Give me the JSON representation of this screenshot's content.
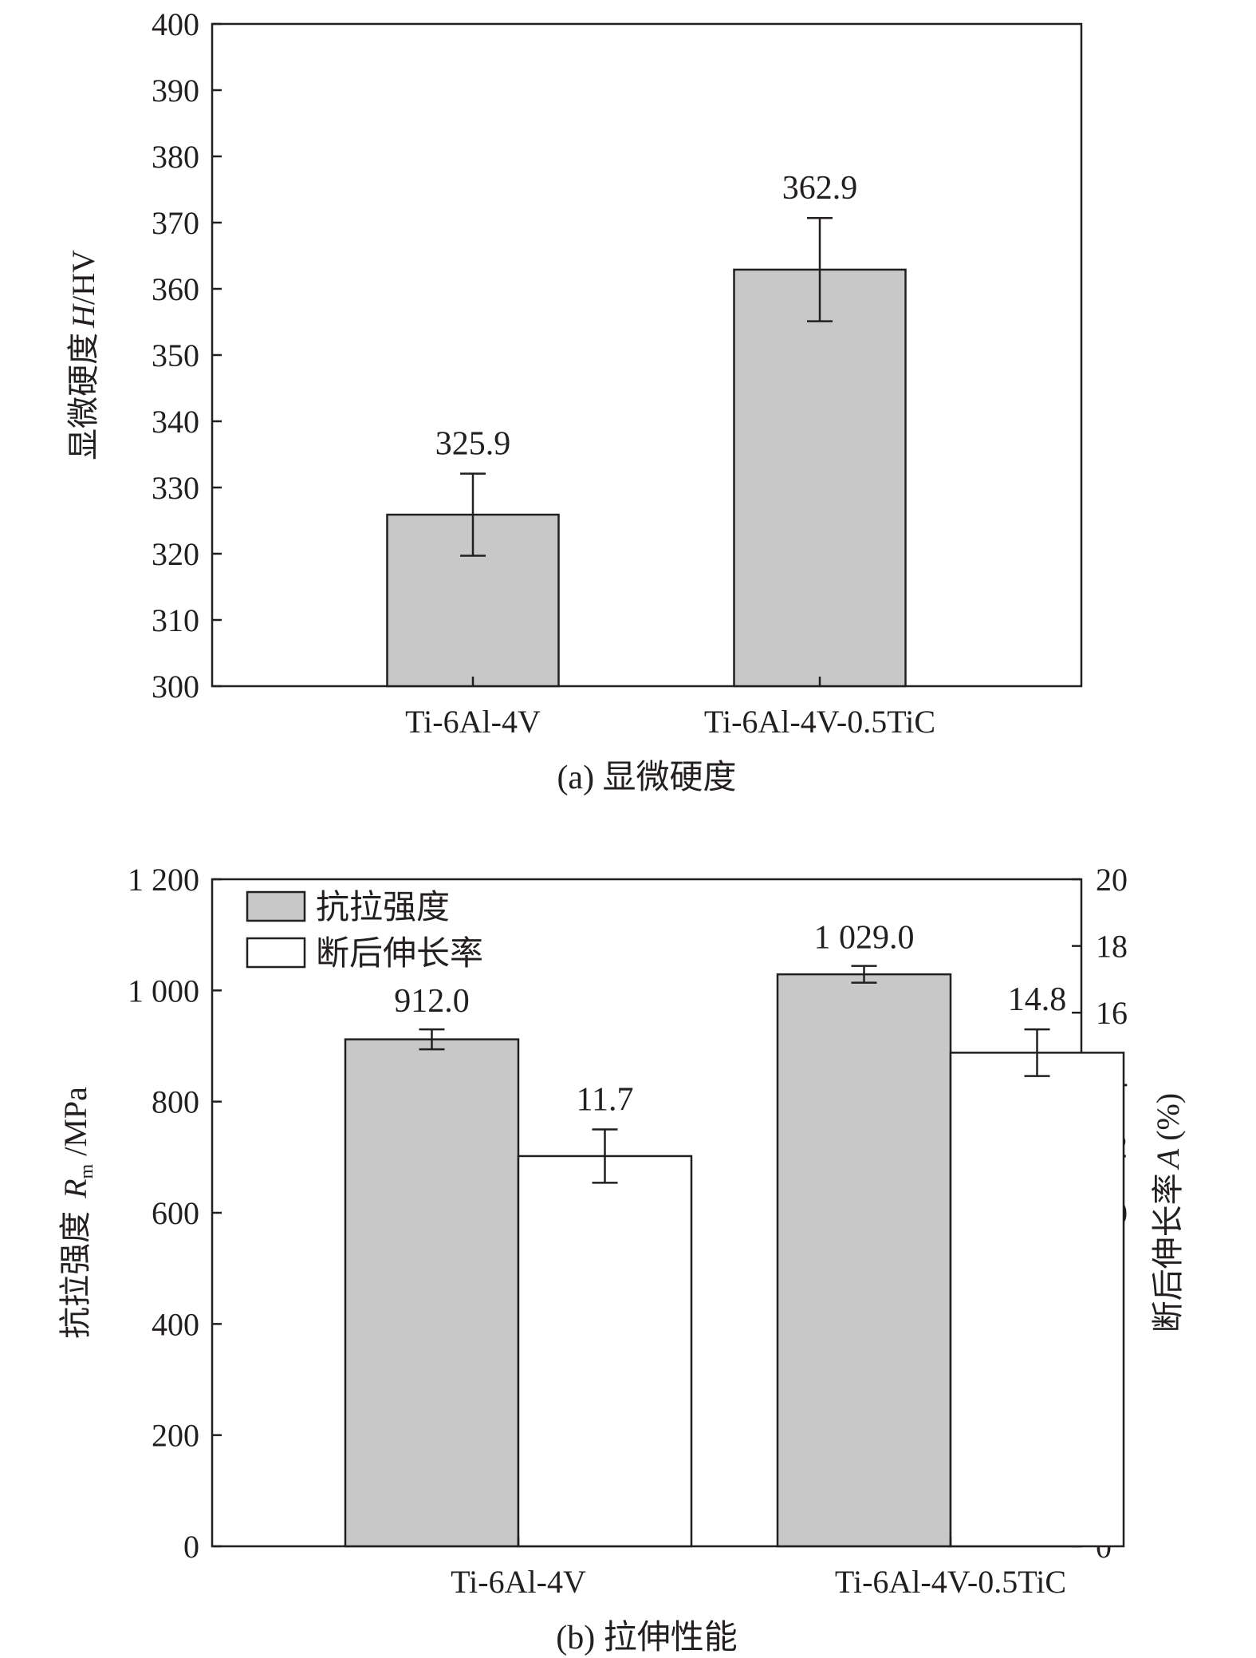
{
  "chart_data": [
    {
      "id": "a",
      "type": "bar",
      "caption": "(a) 显微硬度",
      "categories": [
        "Ti-6Al-4V",
        "Ti-6Al-4V-0.5TiC"
      ],
      "series": [
        {
          "values": [
            325.9,
            362.9
          ],
          "errors": [
            6.2,
            7.8
          ],
          "data_labels": [
            "325.9",
            "362.9"
          ]
        }
      ],
      "ylabel": "显微硬度 H/HV",
      "ylim": [
        300,
        400
      ],
      "yticks": [
        300,
        310,
        320,
        330,
        340,
        350,
        360,
        370,
        380,
        390,
        400
      ],
      "grid": false,
      "legend": "none",
      "bar_color": "#c8c8c8"
    },
    {
      "id": "b",
      "type": "bar",
      "caption": "(b) 拉伸性能",
      "categories": [
        "Ti-6Al-4V",
        "Ti-6Al-4V-0.5TiC"
      ],
      "series": [
        {
          "name": "抗拉强度",
          "axis": "left",
          "values": [
            912.0,
            1029.0
          ],
          "errors": [
            18,
            15
          ],
          "data_labels": [
            "912.0",
            "1 029.0"
          ],
          "color": "#c8c8c8"
        },
        {
          "name": "断后伸长率",
          "axis": "right",
          "values": [
            11.7,
            14.8
          ],
          "errors": [
            0.8,
            0.7
          ],
          "data_labels": [
            "11.7",
            "14.8"
          ],
          "color": "#ffffff"
        }
      ],
      "ylabel": "抗拉强度 Rm /MPa",
      "ylim": [
        0,
        1200
      ],
      "yticks": [
        0,
        200,
        400,
        600,
        800,
        1000,
        1200
      ],
      "ytick_labels": [
        "0",
        "200",
        "400",
        "600",
        "800",
        "1 000",
        "1 200"
      ],
      "y2label": "断后伸长率 A (%)",
      "y2lim": [
        0,
        20
      ],
      "y2ticks": [
        0,
        2,
        4,
        6,
        8,
        10,
        12,
        14,
        16,
        18,
        20
      ],
      "grid": false,
      "legend": "top-left"
    }
  ]
}
